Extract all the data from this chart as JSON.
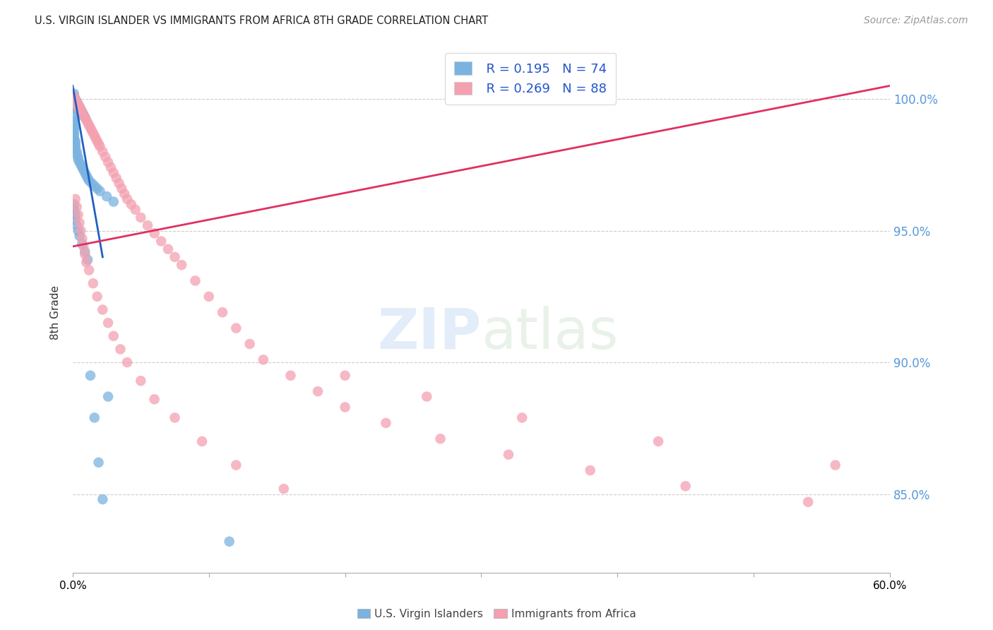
{
  "title": "U.S. VIRGIN ISLANDER VS IMMIGRANTS FROM AFRICA 8TH GRADE CORRELATION CHART",
  "source": "Source: ZipAtlas.com",
  "ylabel": "8th Grade",
  "ytick_labels": [
    "85.0%",
    "90.0%",
    "95.0%",
    "100.0%"
  ],
  "ytick_values": [
    0.85,
    0.9,
    0.95,
    1.0
  ],
  "xlim": [
    0.0,
    0.6
  ],
  "ylim": [
    0.82,
    1.018
  ],
  "legend_r1": "R = 0.195",
  "legend_n1": "N = 74",
  "legend_r2": "R = 0.269",
  "legend_n2": "N = 88",
  "color_blue": "#7ab3e0",
  "color_pink": "#f4a0b0",
  "color_line_blue": "#2060c0",
  "color_line_pink": "#e03060",
  "blue_line_x": [
    0.0,
    0.022
  ],
  "blue_line_y": [
    1.005,
    0.94
  ],
  "pink_line_x": [
    0.0,
    0.6
  ],
  "pink_line_y": [
    0.944,
    1.005
  ],
  "blue_x": [
    0.001,
    0.001,
    0.001,
    0.001,
    0.001,
    0.001,
    0.002,
    0.002,
    0.002,
    0.002,
    0.002,
    0.003,
    0.003,
    0.003,
    0.003,
    0.004,
    0.004,
    0.004,
    0.005,
    0.005,
    0.005,
    0.006,
    0.006,
    0.007,
    0.007,
    0.008,
    0.009,
    0.001,
    0.001,
    0.001,
    0.001,
    0.001,
    0.001,
    0.001,
    0.001,
    0.001,
    0.002,
    0.002,
    0.002,
    0.002,
    0.003,
    0.003,
    0.004,
    0.004,
    0.005,
    0.006,
    0.007,
    0.008,
    0.009,
    0.01,
    0.011,
    0.012,
    0.014,
    0.016,
    0.018,
    0.02,
    0.025,
    0.03,
    0.001,
    0.001,
    0.002,
    0.002,
    0.003,
    0.004,
    0.005,
    0.007,
    0.009,
    0.011,
    0.013,
    0.016,
    0.019,
    0.022,
    0.026,
    0.115
  ],
  "blue_y": [
    1.002,
    1.001,
    1.0,
    0.999,
    0.998,
    0.997,
    1.0,
    0.999,
    0.998,
    0.997,
    0.996,
    0.999,
    0.998,
    0.997,
    0.996,
    0.998,
    0.997,
    0.996,
    0.997,
    0.996,
    0.995,
    0.996,
    0.995,
    0.995,
    0.994,
    0.994,
    0.993,
    0.993,
    0.992,
    0.991,
    0.99,
    0.989,
    0.988,
    0.987,
    0.986,
    0.985,
    0.984,
    0.983,
    0.982,
    0.981,
    0.98,
    0.979,
    0.978,
    0.977,
    0.976,
    0.975,
    0.974,
    0.973,
    0.972,
    0.971,
    0.97,
    0.969,
    0.968,
    0.967,
    0.966,
    0.965,
    0.963,
    0.961,
    0.96,
    0.958,
    0.956,
    0.954,
    0.952,
    0.95,
    0.948,
    0.945,
    0.942,
    0.939,
    0.895,
    0.879,
    0.862,
    0.848,
    0.887,
    0.832
  ],
  "pink_x": [
    0.001,
    0.001,
    0.001,
    0.002,
    0.002,
    0.003,
    0.003,
    0.004,
    0.004,
    0.005,
    0.005,
    0.006,
    0.007,
    0.008,
    0.009,
    0.01,
    0.011,
    0.012,
    0.013,
    0.014,
    0.015,
    0.016,
    0.017,
    0.018,
    0.019,
    0.02,
    0.022,
    0.024,
    0.026,
    0.028,
    0.03,
    0.032,
    0.034,
    0.036,
    0.038,
    0.04,
    0.043,
    0.046,
    0.05,
    0.055,
    0.06,
    0.065,
    0.07,
    0.075,
    0.08,
    0.09,
    0.1,
    0.11,
    0.12,
    0.13,
    0.14,
    0.16,
    0.18,
    0.2,
    0.23,
    0.27,
    0.32,
    0.38,
    0.45,
    0.54,
    0.002,
    0.003,
    0.004,
    0.005,
    0.006,
    0.007,
    0.008,
    0.009,
    0.01,
    0.012,
    0.015,
    0.018,
    0.022,
    0.026,
    0.03,
    0.035,
    0.04,
    0.05,
    0.06,
    0.075,
    0.095,
    0.12,
    0.155,
    0.2,
    0.26,
    0.33,
    0.43,
    0.56
  ],
  "pink_y": [
    1.001,
    1.0,
    0.999,
    1.0,
    0.999,
    0.999,
    0.998,
    0.998,
    0.997,
    0.997,
    0.996,
    0.996,
    0.995,
    0.994,
    0.993,
    0.992,
    0.991,
    0.99,
    0.989,
    0.988,
    0.987,
    0.986,
    0.985,
    0.984,
    0.983,
    0.982,
    0.98,
    0.978,
    0.976,
    0.974,
    0.972,
    0.97,
    0.968,
    0.966,
    0.964,
    0.962,
    0.96,
    0.958,
    0.955,
    0.952,
    0.949,
    0.946,
    0.943,
    0.94,
    0.937,
    0.931,
    0.925,
    0.919,
    0.913,
    0.907,
    0.901,
    0.895,
    0.889,
    0.883,
    0.877,
    0.871,
    0.865,
    0.859,
    0.853,
    0.847,
    0.962,
    0.959,
    0.956,
    0.953,
    0.95,
    0.947,
    0.944,
    0.941,
    0.938,
    0.935,
    0.93,
    0.925,
    0.92,
    0.915,
    0.91,
    0.905,
    0.9,
    0.893,
    0.886,
    0.879,
    0.87,
    0.861,
    0.852,
    0.895,
    0.887,
    0.879,
    0.87,
    0.861
  ]
}
